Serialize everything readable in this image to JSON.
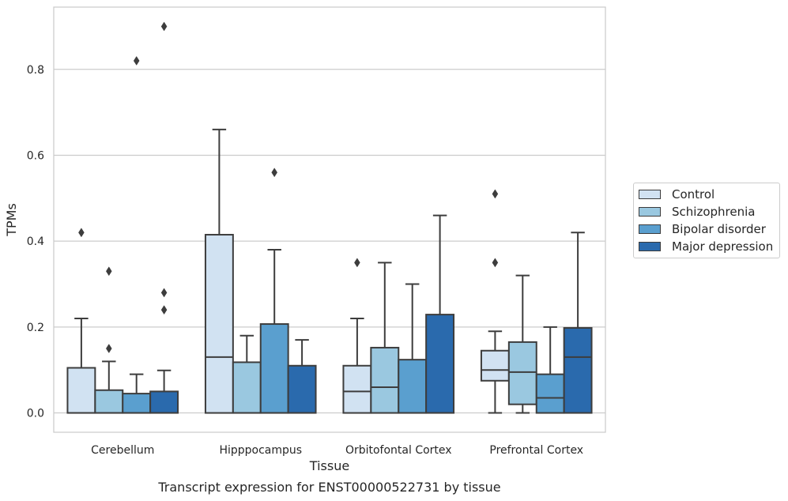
{
  "chart_data": {
    "type": "box",
    "title": "Transcript expression for ENST00000522731 by tissue",
    "xlabel": "Tissue",
    "ylabel": "TPMs",
    "ylim": [
      -0.045,
      0.945
    ],
    "yticks": [
      "0.0",
      "0.2",
      "0.4",
      "0.6",
      "0.8"
    ],
    "grid": "horizontal",
    "legend_position": "right",
    "categories": [
      "Cerebellum",
      "Hipppocampus",
      "Orbitofontal Cortex",
      "Prefrontal Cortex"
    ],
    "series": [
      {
        "name": "Control",
        "color": "#d1e2f2",
        "boxes": [
          {
            "q1": 0.0,
            "median": 0.0,
            "q3": 0.105,
            "whisker_low": 0.0,
            "whisker_high": 0.22,
            "outliers": [
              0.42
            ]
          },
          {
            "q1": 0.0,
            "median": 0.13,
            "q3": 0.415,
            "whisker_low": 0.0,
            "whisker_high": 0.66,
            "outliers": []
          },
          {
            "q1": 0.0,
            "median": 0.05,
            "q3": 0.11,
            "whisker_low": 0.0,
            "whisker_high": 0.22,
            "outliers": [
              0.35
            ]
          },
          {
            "q1": 0.075,
            "median": 0.1,
            "q3": 0.145,
            "whisker_low": 0.0,
            "whisker_high": 0.19,
            "outliers": [
              0.35,
              0.51
            ]
          }
        ]
      },
      {
        "name": "Schizophrenia",
        "color": "#9ac8e0",
        "boxes": [
          {
            "q1": 0.0,
            "median": 0.0,
            "q3": 0.053,
            "whisker_low": 0.0,
            "whisker_high": 0.12,
            "outliers": [
              0.15,
              0.33
            ]
          },
          {
            "q1": 0.0,
            "median": 0.0,
            "q3": 0.118,
            "whisker_low": 0.0,
            "whisker_high": 0.18,
            "outliers": []
          },
          {
            "q1": 0.0,
            "median": 0.06,
            "q3": 0.152,
            "whisker_low": 0.0,
            "whisker_high": 0.35,
            "outliers": []
          },
          {
            "q1": 0.02,
            "median": 0.095,
            "q3": 0.165,
            "whisker_low": 0.0,
            "whisker_high": 0.32,
            "outliers": []
          }
        ]
      },
      {
        "name": "Bipolar disorder",
        "color": "#5a9fcf",
        "boxes": [
          {
            "q1": 0.0,
            "median": 0.0,
            "q3": 0.045,
            "whisker_low": 0.0,
            "whisker_high": 0.09,
            "outliers": [
              0.82
            ]
          },
          {
            "q1": 0.0,
            "median": 0.0,
            "q3": 0.207,
            "whisker_low": 0.0,
            "whisker_high": 0.38,
            "outliers": [
              0.56
            ]
          },
          {
            "q1": 0.0,
            "median": 0.0,
            "q3": 0.124,
            "whisker_low": 0.0,
            "whisker_high": 0.3,
            "outliers": []
          },
          {
            "q1": 0.0,
            "median": 0.035,
            "q3": 0.09,
            "whisker_low": 0.0,
            "whisker_high": 0.2,
            "outliers": []
          }
        ]
      },
      {
        "name": "Major depression",
        "color": "#2a6aad",
        "boxes": [
          {
            "q1": 0.0,
            "median": 0.0,
            "q3": 0.05,
            "whisker_low": 0.0,
            "whisker_high": 0.099,
            "outliers": [
              0.24,
              0.28,
              0.9
            ]
          },
          {
            "q1": 0.0,
            "median": 0.0,
            "q3": 0.11,
            "whisker_low": 0.0,
            "whisker_high": 0.17,
            "outliers": []
          },
          {
            "q1": 0.0,
            "median": 0.0,
            "q3": 0.229,
            "whisker_low": 0.0,
            "whisker_high": 0.46,
            "outliers": []
          },
          {
            "q1": 0.0,
            "median": 0.13,
            "q3": 0.198,
            "whisker_low": 0.0,
            "whisker_high": 0.42,
            "outliers": []
          }
        ]
      }
    ]
  }
}
